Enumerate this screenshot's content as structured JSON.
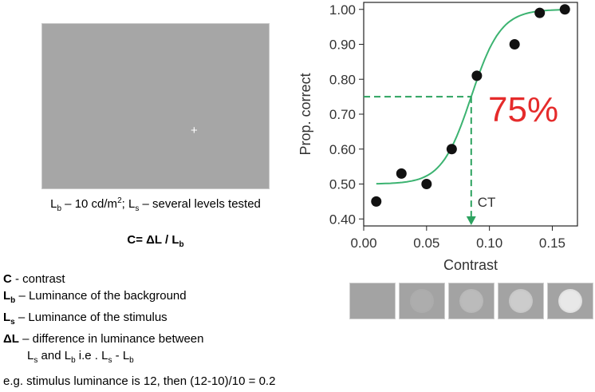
{
  "left_panel": {
    "fixation_symbol": "+",
    "caption_parts": {
      "lb_letter": "L",
      "lb_sub": "b",
      "lb_rest": " – 10 cd/m",
      "sq": "2",
      "semi": "; ",
      "ls_letter": "L",
      "ls_sub": "s",
      "ls_rest": " – several levels tested"
    },
    "formula_parts": {
      "main": "C= ΔL / L",
      "sub": "b"
    },
    "definitions": [
      {
        "term": "C",
        "sub": "",
        "text": " - contrast"
      },
      {
        "term": "L",
        "sub": "b",
        "text": " – Luminance of the background"
      },
      {
        "term": "L",
        "sub": "s",
        "text": " – Luminance of the stimulus"
      },
      {
        "term": "ΔL",
        "sub": "",
        "text": " – difference in luminance between"
      }
    ],
    "definition_cont": {
      "l1": "L",
      "s1": "s",
      "and": " and L",
      "s2": "b",
      "ie": "  i.e . L",
      "s3": "s",
      "minus": " - L",
      "s4": "b"
    },
    "example": "e.g. stimulus luminance is 12, then (12-10)/10 = 0.2"
  },
  "chart_data": {
    "type": "scatter",
    "xlabel": "Contrast",
    "ylabel": "Prop. correct",
    "xlim": [
      0.0,
      0.17
    ],
    "ylim": [
      0.38,
      1.02
    ],
    "x_ticks": [
      "0.00",
      "0.05",
      "0.10",
      "0.15"
    ],
    "x_tick_values": [
      0.0,
      0.05,
      0.1,
      0.15
    ],
    "y_ticks": [
      "0.40",
      "0.50",
      "0.60",
      "0.70",
      "0.80",
      "0.90",
      "1.00"
    ],
    "y_tick_values": [
      0.4,
      0.5,
      0.6,
      0.7,
      0.8,
      0.9,
      1.0
    ],
    "points": [
      {
        "x": 0.01,
        "y": 0.45
      },
      {
        "x": 0.03,
        "y": 0.53
      },
      {
        "x": 0.05,
        "y": 0.5
      },
      {
        "x": 0.07,
        "y": 0.6
      },
      {
        "x": 0.09,
        "y": 0.81
      },
      {
        "x": 0.12,
        "y": 0.9
      },
      {
        "x": 0.14,
        "y": 0.99
      },
      {
        "x": 0.16,
        "y": 1.0
      }
    ],
    "fit_curve": {
      "type": "logistic",
      "floor": 0.5,
      "ceiling": 1.0,
      "midpoint": 0.0855,
      "slope": 85,
      "x_range": [
        0.01,
        0.16
      ]
    },
    "threshold": {
      "y": 0.75,
      "x": 0.0855,
      "label": "CT"
    },
    "annotation": {
      "text": "75%",
      "color": "#e52b2b"
    },
    "curve_color": "#3cb371",
    "guide_color": "#2ca25f",
    "point_color": "#111111",
    "grid": false
  },
  "stimulus_swatches": [
    {
      "disc_luminance": 0.0
    },
    {
      "disc_luminance": 0.15
    },
    {
      "disc_luminance": 0.35
    },
    {
      "disc_luminance": 0.6
    },
    {
      "disc_luminance": 1.0
    }
  ]
}
